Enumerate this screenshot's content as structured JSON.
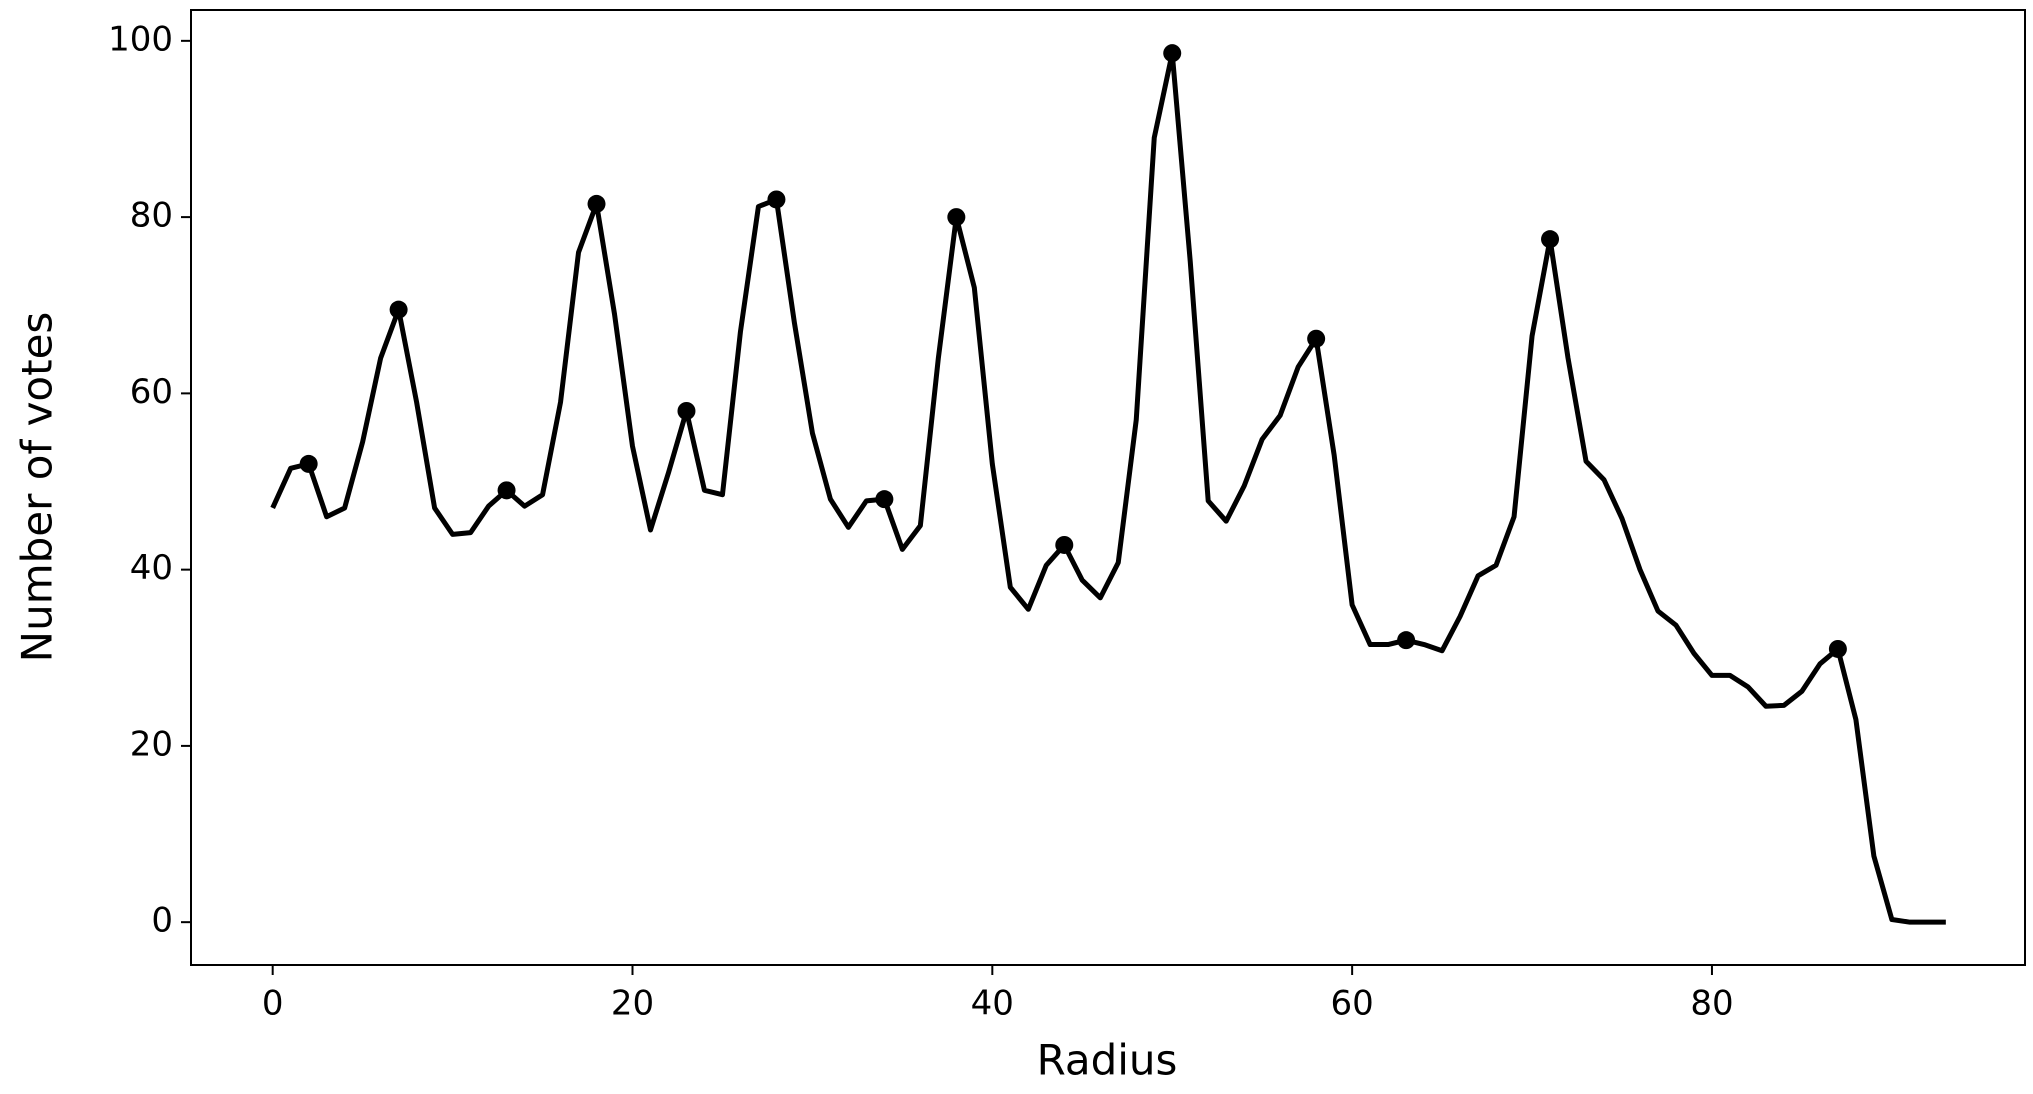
{
  "chart_data": {
    "type": "line",
    "xlabel": "Radius",
    "ylabel": "Number of votes",
    "x": [
      0,
      1,
      2,
      3,
      4,
      5,
      6,
      7,
      8,
      9,
      10,
      11,
      12,
      13,
      14,
      15,
      16,
      17,
      18,
      19,
      20,
      21,
      22,
      23,
      24,
      25,
      26,
      27,
      28,
      29,
      30,
      31,
      32,
      33,
      34,
      35,
      36,
      37,
      38,
      39,
      40,
      41,
      42,
      43,
      44,
      45,
      46,
      47,
      48,
      49,
      50,
      51,
      52,
      53,
      54,
      55,
      56,
      57,
      58,
      59,
      60,
      61,
      62,
      63,
      64,
      65,
      66,
      67,
      68,
      69,
      70,
      71,
      72,
      73,
      74,
      75,
      76,
      77,
      78,
      79,
      80,
      81,
      82,
      83,
      84,
      85,
      86,
      87,
      88,
      89,
      90,
      91,
      92,
      93
    ],
    "values": [
      47,
      51.5,
      52,
      46,
      47,
      54.5,
      64,
      69.5,
      59,
      47,
      44,
      44.2,
      47.2,
      49,
      47.2,
      48.5,
      59,
      76,
      81.5,
      69,
      54,
      44.5,
      51,
      58,
      49,
      48.5,
      67,
      81.2,
      82,
      68,
      55.5,
      48,
      44.8,
      47.8,
      48,
      42.3,
      45,
      64,
      80,
      72,
      52,
      38,
      35.5,
      40.5,
      42.8,
      38.8,
      36.8,
      40.8,
      57,
      89,
      98.6,
      75,
      47.8,
      45.5,
      49.5,
      54.8,
      57.5,
      63,
      66.2,
      53,
      36,
      31.5,
      31.5,
      32,
      31.5,
      30.8,
      34.7,
      39.3,
      40.5,
      46,
      66.5,
      77.5,
      64,
      52.3,
      50.2,
      45.8,
      40,
      35.3,
      33.7,
      30.5,
      28,
      28,
      26.7,
      24.5,
      24.6,
      26.2,
      29.3,
      31,
      23,
      7.5,
      0.3,
      0,
      0,
      0
    ],
    "color": "#000000",
    "peaks": {
      "x": [
        2,
        7,
        13,
        18,
        23,
        28,
        34,
        38,
        44,
        50,
        58,
        63,
        71,
        87
      ],
      "values": [
        52,
        69.5,
        49,
        81.5,
        58,
        82,
        48,
        80,
        42.8,
        98.6,
        66.2,
        32,
        77.5,
        31
      ]
    },
    "xlim": [
      -4.54,
      97.4
    ],
    "ylim": [
      -4.86,
      103.5
    ],
    "xticks": [
      0,
      20,
      40,
      60,
      80
    ],
    "yticks": [
      0,
      20,
      40,
      60,
      80,
      100
    ],
    "grid": false
  }
}
